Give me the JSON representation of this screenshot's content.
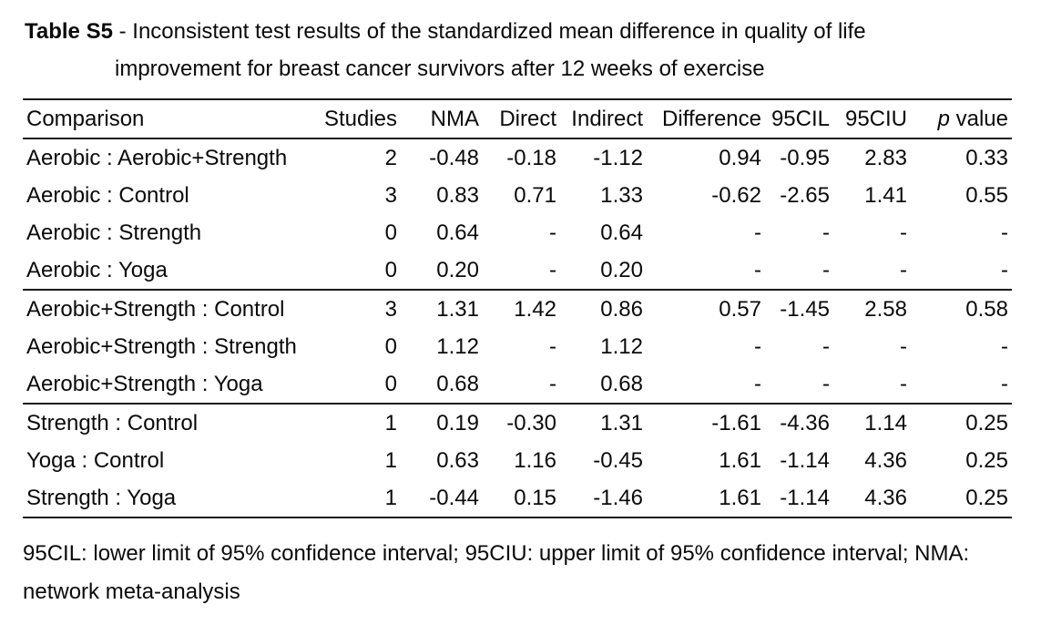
{
  "title": {
    "bold": "Table S5",
    "line1_rest": "- Inconsistent test results of the standardized mean difference in quality of life",
    "line2": "improvement for breast cancer survivors after 12 weeks of exercise"
  },
  "table": {
    "columns": [
      {
        "key": "comparison",
        "label": "Comparison",
        "align": "left"
      },
      {
        "key": "studies",
        "label": "Studies",
        "align": "right"
      },
      {
        "key": "nma",
        "label": "NMA",
        "align": "right"
      },
      {
        "key": "direct",
        "label": "Direct",
        "align": "right"
      },
      {
        "key": "indirect",
        "label": "Indirect",
        "align": "right"
      },
      {
        "key": "difference",
        "label": "Difference",
        "align": "right"
      },
      {
        "key": "cil",
        "label": "95CIL",
        "align": "right"
      },
      {
        "key": "ciu",
        "label": "95CIU",
        "align": "right"
      },
      {
        "key": "p",
        "label_italic": "p",
        "label": " value",
        "align": "right"
      }
    ],
    "rows": [
      {
        "cells": [
          "Aerobic : Aerobic+Strength",
          "2",
          "-0.48",
          "-0.18",
          "-1.12",
          "0.94",
          "-0.95",
          "2.83",
          "0.33"
        ],
        "divider_after": false
      },
      {
        "cells": [
          "Aerobic : Control",
          "3",
          "0.83",
          "0.71",
          "1.33",
          "-0.62",
          "-2.65",
          "1.41",
          "0.55"
        ],
        "divider_after": false
      },
      {
        "cells": [
          "Aerobic : Strength",
          "0",
          "0.64",
          "-",
          "0.64",
          "-",
          "-",
          "-",
          "-"
        ],
        "divider_after": false
      },
      {
        "cells": [
          "Aerobic : Yoga",
          "0",
          "0.20",
          "-",
          "0.20",
          "-",
          "-",
          "-",
          "-"
        ],
        "divider_after": true
      },
      {
        "cells": [
          "Aerobic+Strength : Control",
          "3",
          "1.31",
          "1.42",
          "0.86",
          "0.57",
          "-1.45",
          "2.58",
          "0.58"
        ],
        "divider_after": false
      },
      {
        "cells": [
          "Aerobic+Strength : Strength",
          "0",
          "1.12",
          "-",
          "1.12",
          "-",
          "-",
          "-",
          "-"
        ],
        "divider_after": false
      },
      {
        "cells": [
          "Aerobic+Strength : Yoga",
          "0",
          "0.68",
          "-",
          "0.68",
          "-",
          "-",
          "-",
          "-"
        ],
        "divider_after": true
      },
      {
        "cells": [
          "Strength : Control",
          "1",
          "0.19",
          "-0.30",
          "1.31",
          "-1.61",
          "-4.36",
          "1.14",
          "0.25"
        ],
        "divider_after": false
      },
      {
        "cells": [
          "Yoga : Control",
          "1",
          "0.63",
          "1.16",
          "-0.45",
          "1.61",
          "-1.14",
          "4.36",
          "0.25"
        ],
        "divider_after": false
      },
      {
        "cells": [
          "Strength : Yoga",
          "1",
          "-0.44",
          "0.15",
          "-1.46",
          "1.61",
          "-1.14",
          "4.36",
          "0.25"
        ],
        "divider_after": false
      }
    ]
  },
  "footnote": {
    "line1": "95CIL: lower limit of 95% confidence interval; 95CIU: upper limit of 95% confidence interval; NMA:",
    "line2": "network meta-analysis"
  }
}
